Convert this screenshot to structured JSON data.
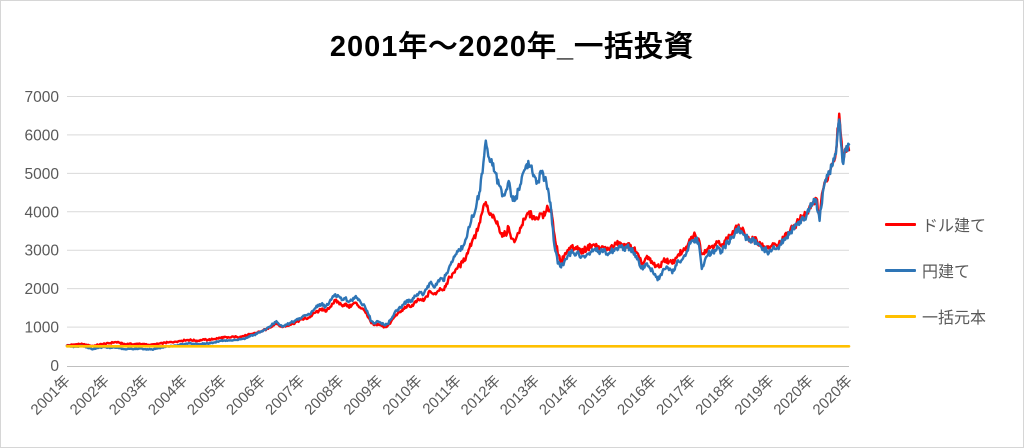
{
  "chart_data": {
    "type": "line",
    "title": "2001年～2020年_一括投資",
    "xlabel": "",
    "ylabel": "",
    "ylim": [
      0,
      7000
    ],
    "y_ticks": [
      0,
      1000,
      2000,
      3000,
      4000,
      5000,
      6000,
      7000
    ],
    "grid": true,
    "legend_position": "right",
    "x_unit": "month",
    "x_range": "2001-01 to 2020-12",
    "x_tick_labels": [
      "2001年",
      "2002年",
      "2003年",
      "2004年",
      "2005年",
      "2006年",
      "2007年",
      "2008年",
      "2009年",
      "2010年",
      "2011年",
      "2012年",
      "2013年",
      "2014年",
      "2015年",
      "2016年",
      "2017年",
      "2018年",
      "2019年",
      "2020年",
      "2020年"
    ],
    "series": [
      {
        "name": "ドル建て",
        "color": "#ff0000",
        "values": [
          520,
          530,
          545,
          552,
          558,
          548,
          538,
          522,
          508,
          528,
          548,
          558,
          568,
          578,
          598,
          608,
          588,
          568,
          552,
          565,
          548,
          556,
          570,
          560,
          546,
          540,
          536,
          550,
          564,
          578,
          590,
          600,
          610,
          620,
          630,
          645,
          656,
          664,
          660,
          650,
          646,
          656,
          670,
          666,
          676,
          690,
          706,
          722,
          732,
          722,
          732,
          746,
          742,
          752,
          766,
          782,
          812,
          832,
          852,
          882,
          912,
          952,
          992,
          1052,
          1102,
          1022,
          1002,
          1032,
          1062,
          1092,
          1132,
          1172,
          1202,
          1222,
          1252,
          1322,
          1382,
          1422,
          1482,
          1402,
          1472,
          1602,
          1682,
          1642,
          1562,
          1602,
          1522,
          1562,
          1632,
          1562,
          1482,
          1422,
          1252,
          1102,
          1052,
          1082,
          1042,
          1002,
          1032,
          1132,
          1262,
          1342,
          1392,
          1472,
          1562,
          1522,
          1602,
          1682,
          1722,
          1682,
          1802,
          1932,
          1852,
          1892,
          2012,
          1972,
          2132,
          2292,
          2402,
          2522,
          2602,
          2682,
          2842,
          3062,
          3282,
          3422,
          3702,
          4002,
          4252,
          3952,
          3852,
          3752,
          3602,
          3352,
          3422,
          3602,
          3302,
          3252,
          3452,
          3652,
          3802,
          3952,
          3902,
          3802,
          3802,
          3952,
          3902,
          4102,
          4052,
          3402,
          2902,
          2702,
          2852,
          3002,
          3102,
          3052,
          3102,
          2952,
          3002,
          3052,
          3102,
          3152,
          3102,
          3002,
          3082,
          3002,
          3052,
          3102,
          3152,
          3202,
          3102,
          3152,
          3102,
          3052,
          2952,
          2752,
          2652,
          2802,
          2752,
          2652,
          2602,
          2552,
          2702,
          2752,
          2702,
          2652,
          2802,
          2902,
          2952,
          3002,
          3202,
          3352,
          3402,
          3302,
          2902,
          3002,
          3052,
          3102,
          3152,
          3202,
          3102,
          3252,
          3302,
          3402,
          3502,
          3602,
          3552,
          3452,
          3352,
          3252,
          3302,
          3202,
          3152,
          3102,
          3052,
          3102,
          3152,
          3102,
          3202,
          3302,
          3402,
          3502,
          3602,
          3702,
          3802,
          3902,
          3952,
          4152,
          4252,
          4352,
          3902,
          4552,
          4852,
          5052,
          5252,
          5552,
          6552,
          5402,
          5652,
          5602
        ]
      },
      {
        "name": "円建て",
        "color": "#2e75b6",
        "values": [
          510,
          495,
          480,
          490,
          505,
          495,
          470,
          450,
          430,
          450,
          465,
          480,
          470,
          455,
          470,
          460,
          450,
          435,
          420,
          435,
          425,
          430,
          445,
          435,
          428,
          420,
          418,
          432,
          450,
          468,
          482,
          495,
          508,
          520,
          532,
          548,
          560,
          572,
          568,
          556,
          548,
          560,
          574,
          570,
          586,
          602,
          622,
          642,
          652,
          642,
          656,
          672,
          666,
          682,
          702,
          722,
          762,
          792,
          822,
          862,
          902,
          952,
          1002,
          1082,
          1152,
          1052,
          1022,
          1062,
          1092,
          1132,
          1182,
          1232,
          1272,
          1302,
          1342,
          1422,
          1502,
          1552,
          1622,
          1522,
          1602,
          1752,
          1852,
          1802,
          1702,
          1752,
          1652,
          1702,
          1782,
          1702,
          1602,
          1552,
          1352,
          1152,
          1102,
          1152,
          1102,
          1052,
          1082,
          1202,
          1352,
          1452,
          1502,
          1602,
          1702,
          1652,
          1752,
          1852,
          1902,
          1852,
          2002,
          2152,
          2052,
          2102,
          2252,
          2202,
          2402,
          2602,
          2752,
          2902,
          3002,
          3102,
          3302,
          3602,
          3902,
          4102,
          4502,
          5002,
          5852,
          5402,
          5202,
          5002,
          4702,
          4402,
          4502,
          4802,
          4402,
          4302,
          4602,
          4902,
          5102,
          5322,
          5202,
          4902,
          4802,
          5002,
          4852,
          4602,
          4002,
          3102,
          2652,
          2552,
          2702,
          2852,
          2952,
          2902,
          2952,
          2802,
          2852,
          2902,
          2952,
          3002,
          3052,
          2952,
          3002,
          2902,
          2952,
          3002,
          3052,
          3102,
          3002,
          3102,
          3052,
          2952,
          2852,
          2602,
          2502,
          2652,
          2552,
          2452,
          2302,
          2252,
          2452,
          2522,
          2482,
          2402,
          2602,
          2702,
          2752,
          2852,
          3102,
          3252,
          3302,
          3202,
          2512,
          2752,
          2902,
          2952,
          3002,
          3052,
          2952,
          3102,
          3202,
          3302,
          3402,
          3552,
          3502,
          3402,
          3302,
          3202,
          3252,
          3152,
          3102,
          3052,
          2952,
          3002,
          3102,
          3052,
          3152,
          3252,
          3352,
          3452,
          3552,
          3652,
          3752,
          3852,
          3902,
          4102,
          4202,
          4302,
          3762,
          4502,
          4802,
          5002,
          5202,
          5502,
          6402,
          5302,
          5602,
          5752
        ]
      },
      {
        "name": "一括元本",
        "color": "#ffc000",
        "constant": 500
      }
    ],
    "style": {
      "gridline_color": "#d9d9d9",
      "axis_line_color": "#bfbfbf",
      "tick_label_color": "#595959",
      "title_color": "#000000"
    }
  }
}
